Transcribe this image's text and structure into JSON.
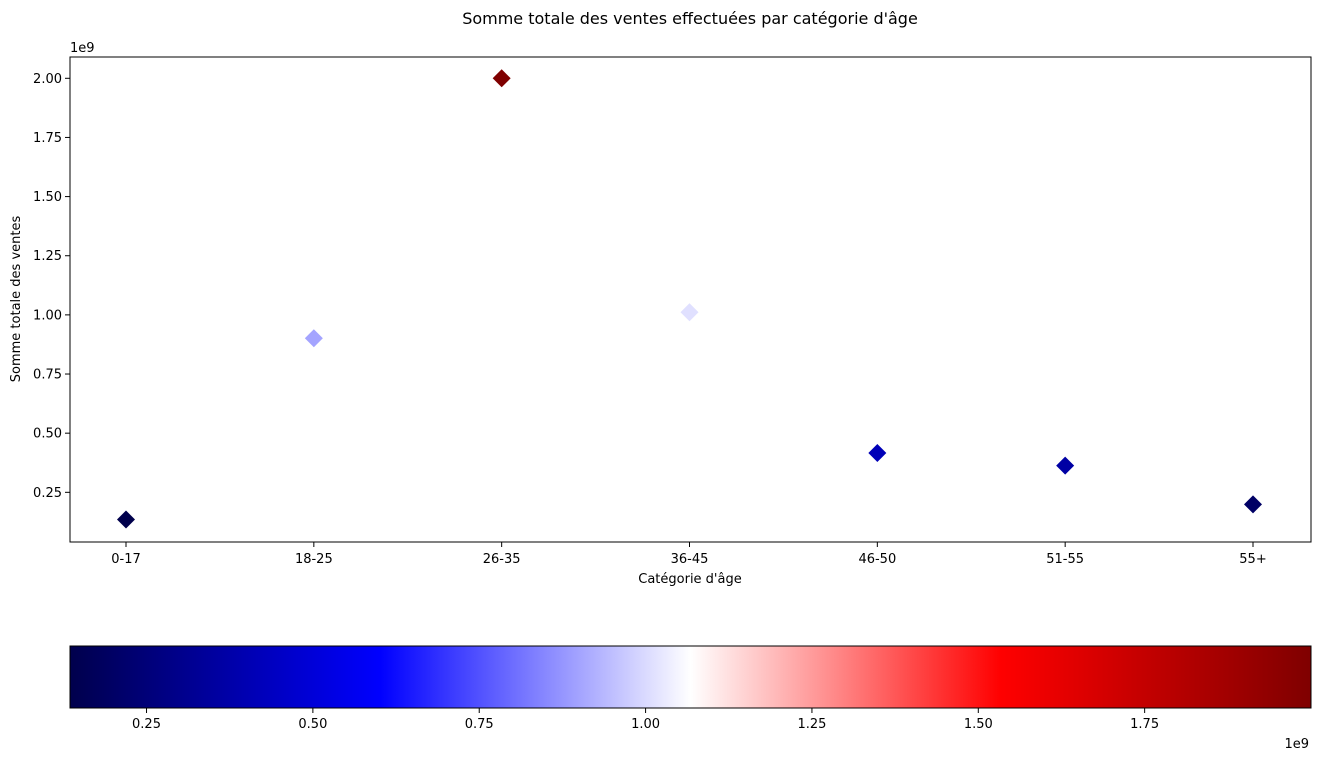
{
  "chart_data": {
    "type": "scatter",
    "title": "Somme totale des ventes effectuées par catégorie d'âge",
    "xlabel": "Catégorie d'âge",
    "ylabel": "Somme totale des ventes",
    "y_offset_label": "1e9",
    "categories": [
      "0-17",
      "18-25",
      "26-35",
      "36-45",
      "46-50",
      "51-55",
      "55+"
    ],
    "values": [
      135000000.0,
      901000000.0,
      2000000000.0,
      1011000000.0,
      416000000.0,
      363000000.0,
      199000000.0
    ],
    "ylim": [
      40000000.0,
      2090000000.0
    ],
    "yticks": [
      0.25,
      0.5,
      0.75,
      1.0,
      1.25,
      1.5,
      1.75,
      2.0
    ],
    "ytick_labels": [
      "0.25",
      "0.50",
      "0.75",
      "1.00",
      "1.25",
      "1.50",
      "1.75",
      "2.00"
    ],
    "marker": "diamond",
    "grid": false,
    "colormap": {
      "name": "seismic",
      "range": [
        135000000.0,
        2000000000.0
      ],
      "ticks": [
        0.25,
        0.5,
        0.75,
        1.0,
        1.25,
        1.5,
        1.75
      ],
      "tick_labels": [
        "0.25",
        "0.50",
        "0.75",
        "1.00",
        "1.25",
        "1.50",
        "1.75"
      ],
      "offset_label": "1e9",
      "orientation": "horizontal",
      "stops": [
        "#00004c",
        "#0000ff",
        "#ffffff",
        "#ff0000",
        "#7f0000"
      ]
    }
  }
}
